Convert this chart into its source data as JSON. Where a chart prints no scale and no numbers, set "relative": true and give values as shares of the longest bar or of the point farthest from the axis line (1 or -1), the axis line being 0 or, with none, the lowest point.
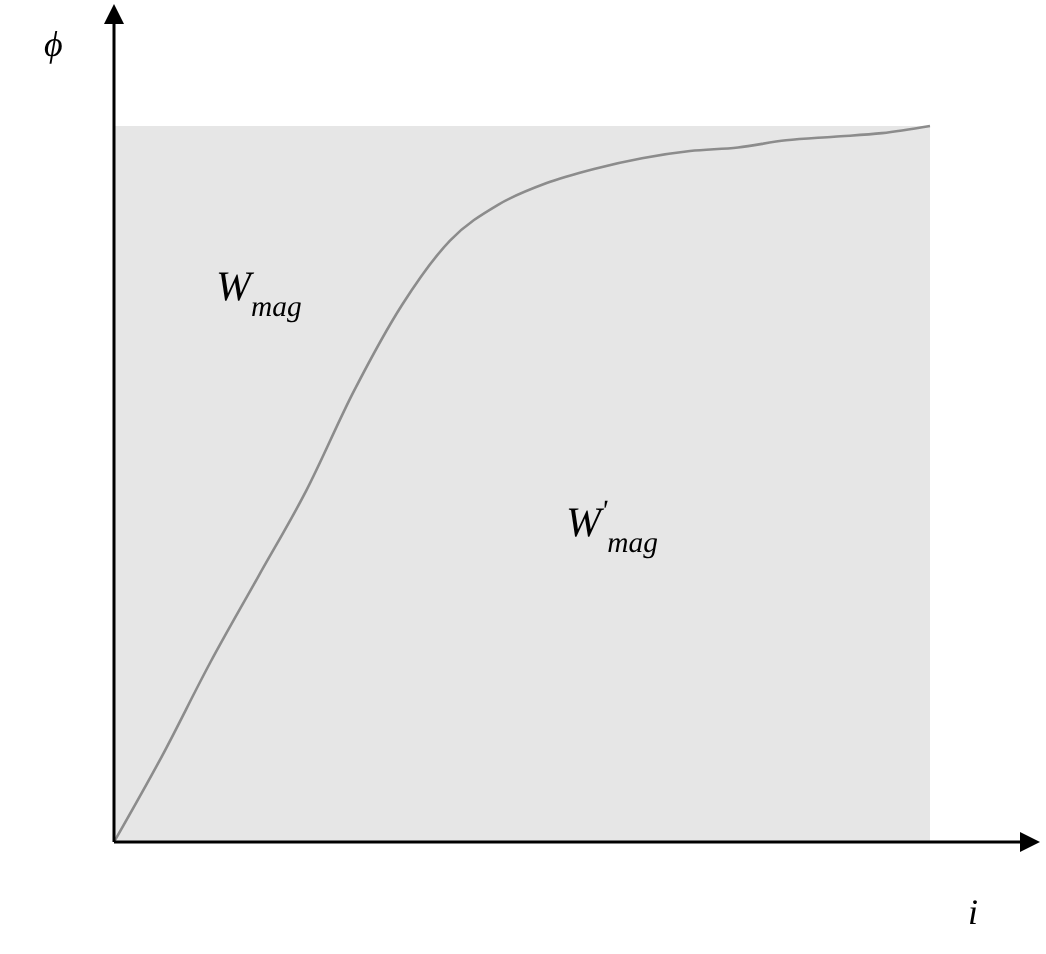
{
  "chart_data": {
    "type": "line",
    "relative": true,
    "xlabel": "i",
    "ylabel": "ϕ",
    "categories": [
      null,
      null,
      null,
      null,
      null,
      null,
      null,
      null,
      null,
      null,
      null,
      null,
      null,
      null,
      null,
      null,
      null,
      null
    ],
    "series": [
      {
        "color": "#8c8c8c",
        "values": [
          0,
          0.12,
          0.25,
          0.37,
          0.49,
          0.63,
          0.75,
          0.84,
          0.89,
          0.92,
          0.94,
          0.955,
          0.965,
          0.97,
          0.98,
          0.985,
          0.99,
          1
        ]
      }
    ],
    "annotations": [
      "W$_{mag}$",
      "W$^{'}$$_{mag}$"
    ],
    "grid": false,
    "legend": false
  }
}
